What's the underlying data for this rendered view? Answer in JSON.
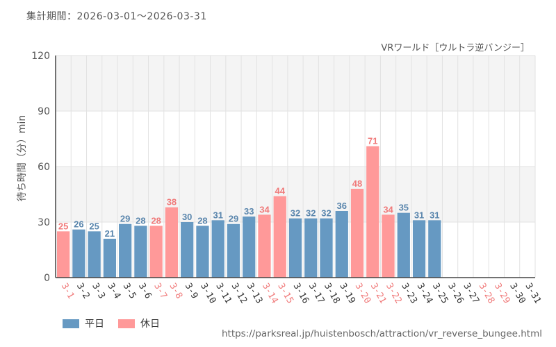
{
  "chart_data": {
    "type": "bar",
    "period_label": "集計期間：2026-03-01～2026-03-31",
    "title": "VRワールド［ウルトラ逆バンジー］",
    "ylabel": "待ち時間（分）min",
    "ylim": [
      0,
      120
    ],
    "yticks": [
      "0",
      "30",
      "60",
      "90",
      "120"
    ],
    "categories": [
      "3-1",
      "3-2",
      "3-3",
      "3-4",
      "3-5",
      "3-6",
      "3-7",
      "3-8",
      "3-9",
      "3-10",
      "3-11",
      "3-12",
      "3-13",
      "3-14",
      "3-15",
      "3-16",
      "3-17",
      "3-18",
      "3-19",
      "3-20",
      "3-21",
      "3-22",
      "3-23",
      "3-24",
      "3-25",
      "3-26",
      "3-27",
      "3-28",
      "3-29",
      "3-30",
      "3-31"
    ],
    "values": [
      25,
      26,
      25,
      21,
      29,
      28,
      28,
      38,
      30,
      28,
      31,
      29,
      33,
      34,
      44,
      32,
      32,
      32,
      36,
      48,
      71,
      34,
      35,
      31,
      31,
      null,
      null,
      null,
      null,
      null,
      null
    ],
    "day_type": [
      "holiday",
      "weekday",
      "weekday",
      "weekday",
      "weekday",
      "weekday",
      "holiday",
      "holiday",
      "weekday",
      "weekday",
      "weekday",
      "weekday",
      "weekday",
      "holiday",
      "holiday",
      "weekday",
      "weekday",
      "weekday",
      "weekday",
      "holiday",
      "holiday",
      "holiday",
      "weekday",
      "weekday",
      "weekday",
      "weekday",
      "weekday",
      "holiday",
      "holiday",
      "weekday",
      "weekday"
    ],
    "series": [
      {
        "key": "weekday",
        "name": "平日"
      },
      {
        "key": "holiday",
        "name": "休日"
      }
    ]
  },
  "colors": {
    "weekday": "#6699c2",
    "holiday": "#ff9999",
    "weekday_label": "#5a86ad",
    "holiday_label": "#f07a7a",
    "band": "#f4f4f4",
    "grid": "#e2e2e2",
    "axis": "#444444"
  },
  "source_url": "https://parksreal.jp/huistenbosch/attraction/vr_reverse_bungee.html"
}
